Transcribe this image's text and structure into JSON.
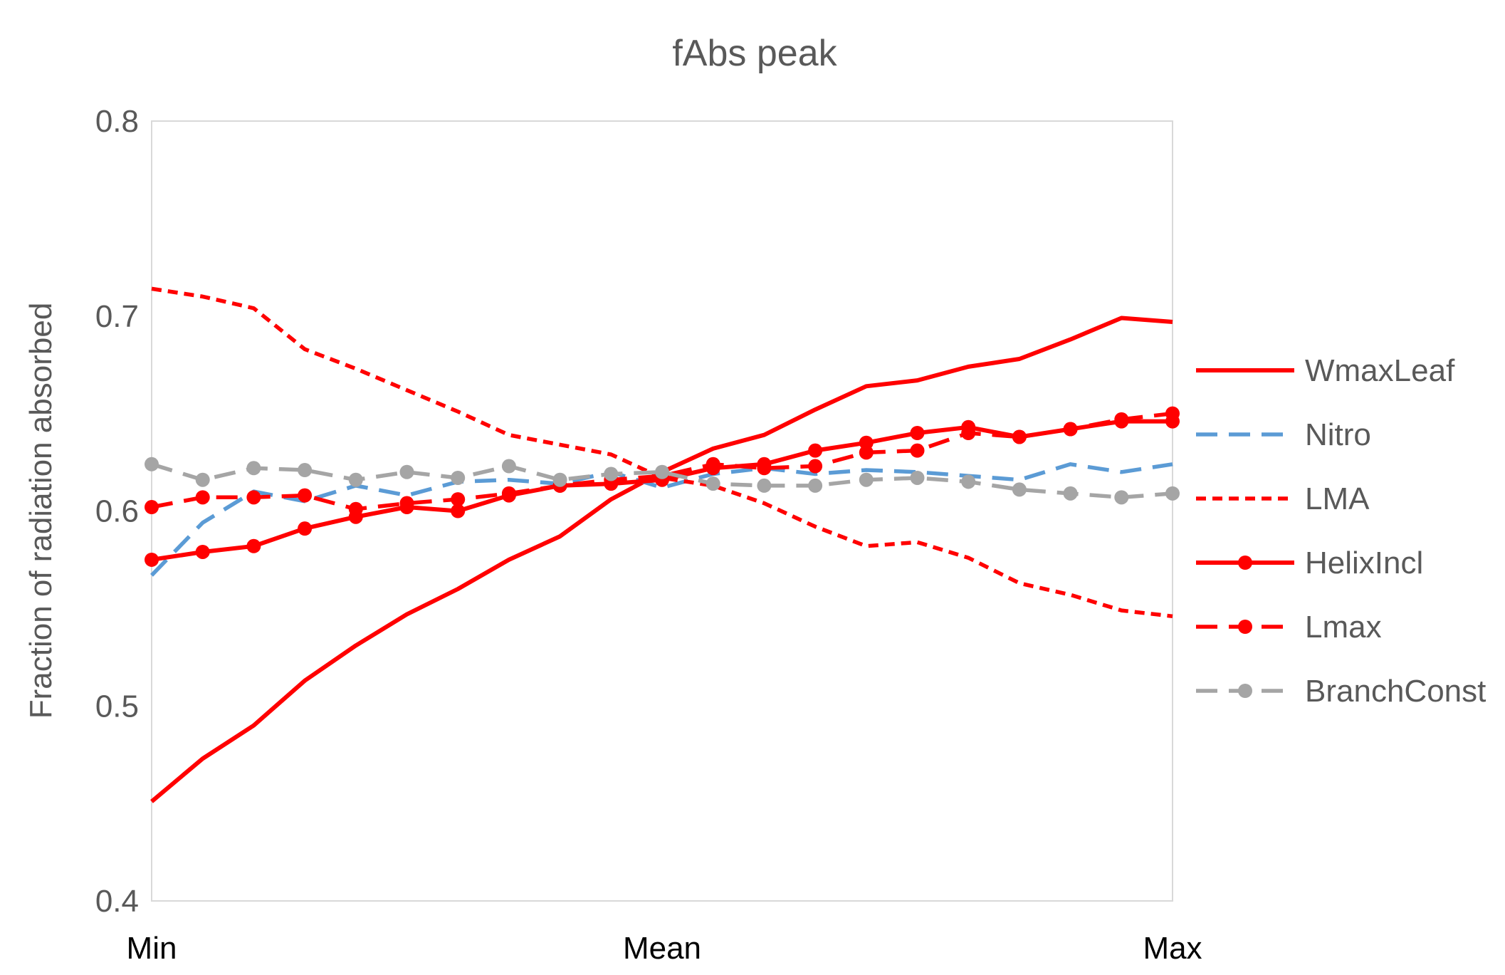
{
  "chart_data": {
    "type": "line",
    "title": "fAbs peak",
    "xlabel": "",
    "ylabel": "Fraction of radiation absorbed",
    "ylim": [
      0.4,
      0.8
    ],
    "yticks": [
      "0.4",
      "0.5",
      "0.6",
      "0.7",
      "0.8"
    ],
    "x_count": 21,
    "x_tick_labels": [
      {
        "index": 0,
        "label": "Min"
      },
      {
        "index": 10,
        "label": "Mean"
      },
      {
        "index": 20,
        "label": "Max"
      }
    ],
    "grid": false,
    "legend_position": "right",
    "series": [
      {
        "name": "WmaxLeaf",
        "color": "#ff0000",
        "dash": "solid",
        "marker": false,
        "values": [
          0.451,
          0.473,
          0.49,
          0.513,
          0.531,
          0.547,
          0.56,
          0.575,
          0.587,
          0.606,
          0.62,
          0.632,
          0.639,
          0.652,
          0.664,
          0.667,
          0.674,
          0.678,
          0.688,
          0.699,
          0.697
        ]
      },
      {
        "name": "Nitro",
        "color": "#5b9bd5",
        "dash": "dash",
        "marker": false,
        "values": [
          0.567,
          0.594,
          0.61,
          0.605,
          0.613,
          0.608,
          0.615,
          0.616,
          0.614,
          0.62,
          0.612,
          0.619,
          0.622,
          0.619,
          0.621,
          0.62,
          0.618,
          0.616,
          0.624,
          0.62,
          0.624
        ]
      },
      {
        "name": "LMA",
        "color": "#ff0000",
        "dash": "dot",
        "marker": false,
        "values": [
          0.714,
          0.71,
          0.704,
          0.683,
          0.673,
          0.662,
          0.651,
          0.639,
          0.634,
          0.629,
          0.617,
          0.613,
          0.604,
          0.592,
          0.582,
          0.584,
          0.576,
          0.563,
          0.557,
          0.549,
          0.546
        ]
      },
      {
        "name": "HelixIncl",
        "color": "#ff0000",
        "dash": "solid",
        "marker": true,
        "values": [
          0.575,
          0.579,
          0.582,
          0.591,
          0.597,
          0.602,
          0.6,
          0.608,
          0.613,
          0.614,
          0.616,
          0.622,
          0.624,
          0.631,
          0.635,
          0.64,
          0.643,
          0.638,
          0.642,
          0.646,
          0.646
        ]
      },
      {
        "name": "Lmax",
        "color": "#ff0000",
        "dash": "dash",
        "marker": true,
        "values": [
          0.602,
          0.607,
          0.607,
          0.608,
          0.601,
          0.604,
          0.606,
          0.609,
          0.613,
          0.616,
          0.618,
          0.624,
          0.622,
          0.623,
          0.63,
          0.631,
          0.64,
          0.638,
          0.642,
          0.647,
          0.65
        ]
      },
      {
        "name": "BranchConst",
        "color": "#a5a5a5",
        "dash": "dash",
        "marker": true,
        "values": [
          0.624,
          0.616,
          0.622,
          0.621,
          0.616,
          0.62,
          0.617,
          0.623,
          0.616,
          0.619,
          0.62,
          0.614,
          0.613,
          0.613,
          0.616,
          0.617,
          0.615,
          0.611,
          0.609,
          0.607,
          0.609
        ]
      }
    ]
  }
}
